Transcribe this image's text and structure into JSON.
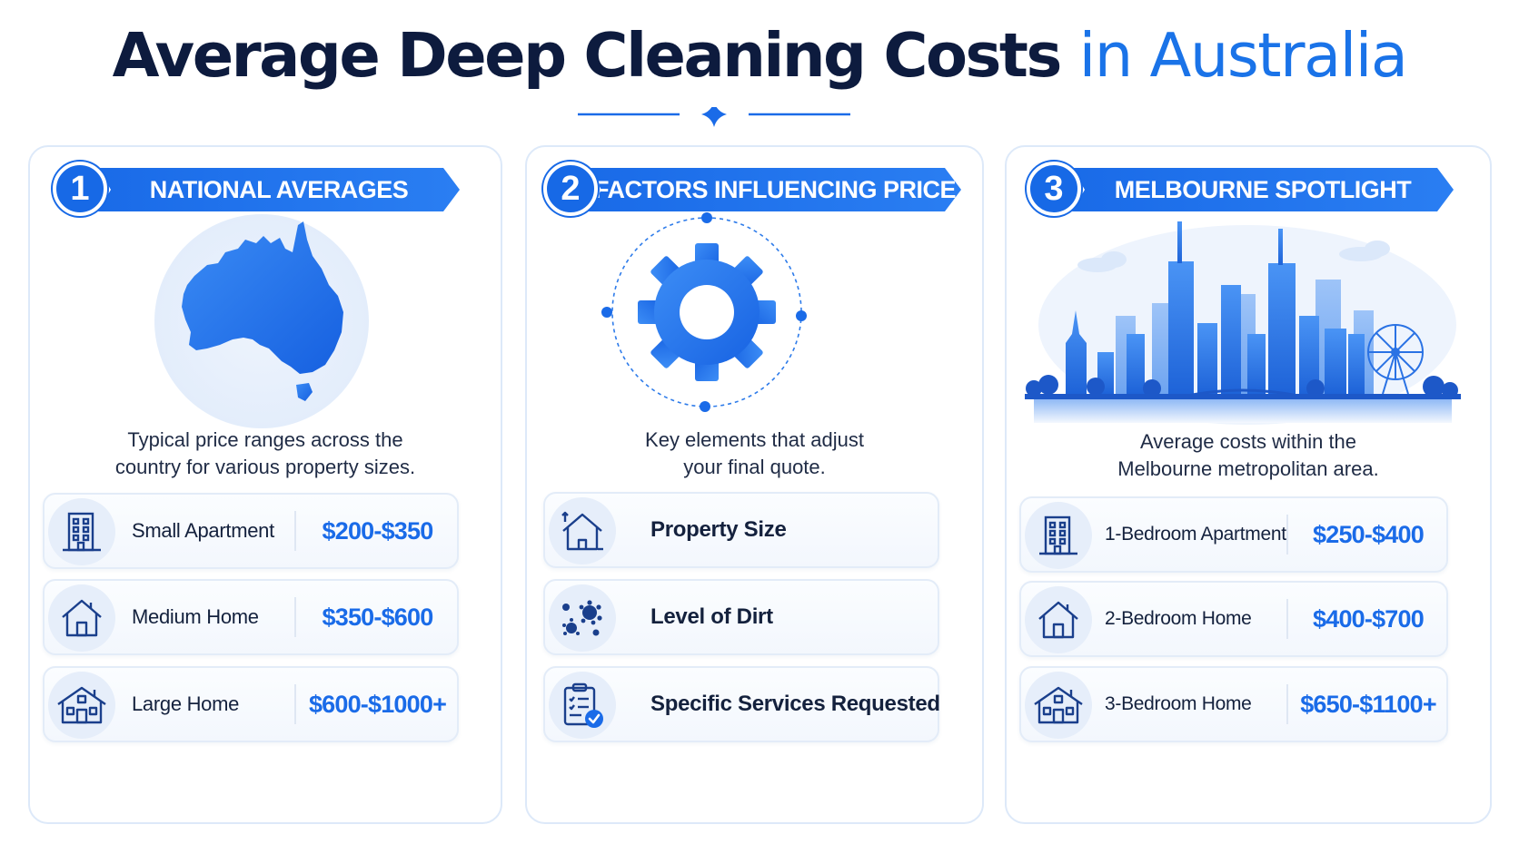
{
  "title": {
    "main": "Average Deep Cleaning Costs",
    "accent": "in Australia"
  },
  "colors": {
    "accent": "#1a73e8",
    "title": "#0d1b3e",
    "card_border": "#dde9f9"
  },
  "sections": [
    {
      "number": "1",
      "heading": "NATIONAL AVERAGES",
      "illustration": "australia-map-icon",
      "description_lines": [
        "Typical price ranges across the",
        "country for various property sizes."
      ],
      "rows": [
        {
          "icon": "apartment-building-icon",
          "label": "Small Apartment",
          "price": "$200-$350"
        },
        {
          "icon": "house-icon",
          "label": "Medium Home",
          "price": "$350-$600"
        },
        {
          "icon": "large-house-icon",
          "label": "Large Home",
          "price": "$600-$1000+"
        }
      ]
    },
    {
      "number": "2",
      "heading": "FACTORS INFLUENCING PRICE",
      "illustration": "gear-icon",
      "description_lines": [
        "Key elements that adjust",
        "your final quote."
      ],
      "rows": [
        {
          "icon": "house-size-icon",
          "label": "Property Size"
        },
        {
          "icon": "dirt-particles-icon",
          "label": "Level of Dirt"
        },
        {
          "icon": "checklist-icon",
          "label": "Specific Services Requested"
        }
      ]
    },
    {
      "number": "3",
      "heading": "MELBOURNE SPOTLIGHT",
      "illustration": "melbourne-skyline-icon",
      "description_lines": [
        "Average costs within the",
        "Melbourne metropolitan area."
      ],
      "rows": [
        {
          "icon": "apartment-building-icon",
          "label": "1-Bedroom Apartment",
          "price": "$250-$400"
        },
        {
          "icon": "house-icon",
          "label": "2-Bedroom Home",
          "price": "$400-$700"
        },
        {
          "icon": "large-house-icon",
          "label": "3-Bedroom Home",
          "price": "$650-$1100+"
        }
      ]
    }
  ]
}
